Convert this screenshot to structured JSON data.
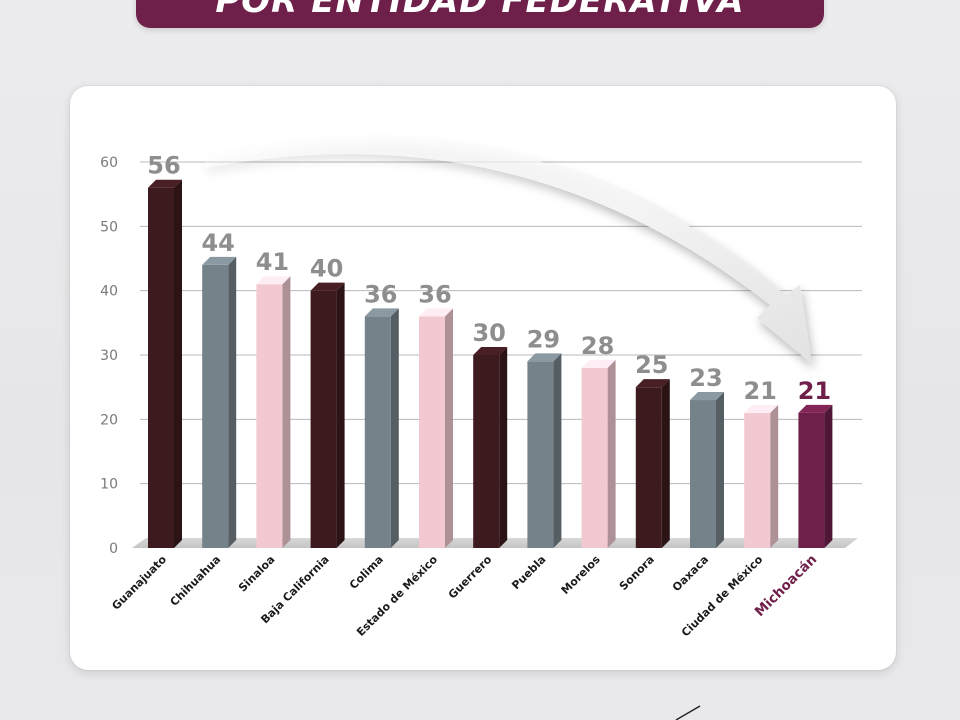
{
  "header": {
    "title": "POR ENTIDAD FEDERATIVA"
  },
  "colors": {
    "maroon": "#3d1a1e",
    "gray": "#76828a",
    "pink": "#f2c9d0",
    "purple": "#6e1f4a",
    "value_label": "#8e8e8e",
    "highlight_label": "#6e1f4a"
  },
  "chart_data": {
    "type": "bar",
    "title": "",
    "xlabel": "",
    "ylabel": "",
    "ylim": [
      0,
      60
    ],
    "yticks": [
      "0",
      "10",
      "20",
      "30",
      "40",
      "50",
      "60"
    ],
    "grid": true,
    "categories": [
      "Guanajuato",
      "Chihuahua",
      "Sinaloa",
      "Baja California",
      "Colima",
      "Estado de México",
      "Guerrero",
      "Puebla",
      "Morelos",
      "Sonora",
      "Oaxaca",
      "Ciudad de México",
      "Michoacán"
    ],
    "values": [
      56,
      44,
      41,
      40,
      36,
      36,
      30,
      29,
      28,
      25,
      23,
      21,
      21
    ],
    "value_labels": [
      "56",
      "44",
      "41",
      "40",
      "36",
      "36",
      "30",
      "29",
      "28",
      "25",
      "23",
      "21",
      "21"
    ],
    "bar_colors": [
      "maroon",
      "gray",
      "pink",
      "maroon",
      "gray",
      "pink",
      "maroon",
      "gray",
      "pink",
      "maroon",
      "gray",
      "pink",
      "purple"
    ],
    "highlight": "Michoacán"
  }
}
